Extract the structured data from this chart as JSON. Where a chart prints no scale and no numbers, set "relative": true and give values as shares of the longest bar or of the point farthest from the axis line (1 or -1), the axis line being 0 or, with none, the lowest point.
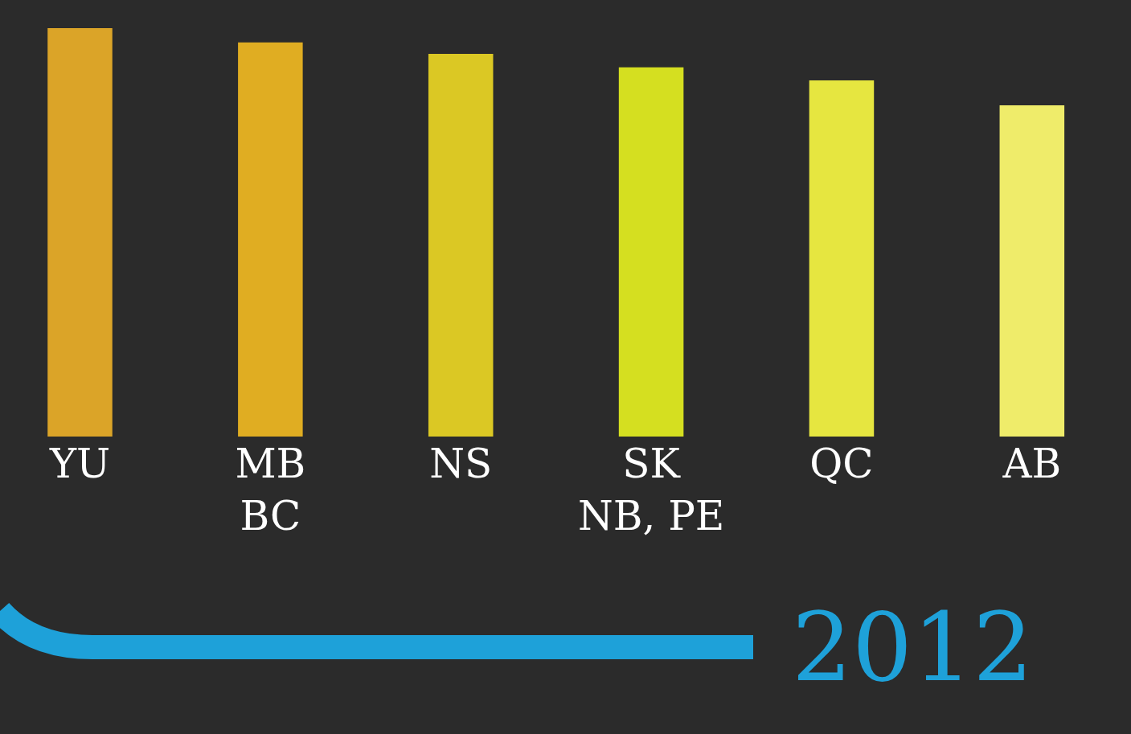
{
  "chart_data": {
    "type": "bar",
    "relative": true,
    "categories": [
      "YU",
      "MB\nBC",
      "NS",
      "SK\nNB, PE",
      "QC",
      "AB"
    ],
    "values": [
      1,
      0.965,
      0.937,
      0.904,
      0.872,
      0.811
    ],
    "colors": [
      "#dba428",
      "#e0ad22",
      "#dbc824",
      "#d5df20",
      "#e6e640",
      "#efec6a"
    ],
    "annotations": [
      "2012"
    ],
    "legend": false
  }
}
